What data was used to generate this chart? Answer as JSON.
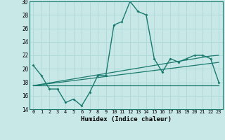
{
  "xlabel": "Humidex (Indice chaleur)",
  "x": [
    0,
    1,
    2,
    3,
    4,
    5,
    6,
    7,
    8,
    9,
    10,
    11,
    12,
    13,
    14,
    15,
    16,
    17,
    18,
    19,
    20,
    21,
    22,
    23
  ],
  "line1": [
    20.5,
    19.0,
    17.0,
    17.0,
    15.0,
    15.5,
    14.5,
    16.5,
    19.0,
    19.0,
    26.5,
    27.0,
    30.0,
    28.5,
    28.0,
    21.5,
    19.5,
    21.5,
    21.0,
    21.5,
    22.0,
    22.0,
    21.5,
    18.0
  ],
  "line2": [
    17.5,
    17.5,
    17.5,
    17.5,
    17.5,
    17.5,
    17.5,
    17.5,
    17.5,
    17.5,
    17.5,
    17.5,
    17.5,
    17.5,
    17.5,
    17.5,
    17.5,
    17.5,
    17.5,
    17.5,
    17.5,
    17.5,
    17.5,
    17.5
  ],
  "line3": [
    17.5,
    17.65,
    17.8,
    17.95,
    18.1,
    18.25,
    18.4,
    18.55,
    18.7,
    18.85,
    19.0,
    19.15,
    19.3,
    19.45,
    19.6,
    19.75,
    19.9,
    20.05,
    20.2,
    20.35,
    20.5,
    20.65,
    20.8,
    20.95
  ],
  "line4": [
    17.5,
    17.7,
    17.9,
    18.1,
    18.3,
    18.5,
    18.7,
    18.9,
    19.1,
    19.3,
    19.5,
    19.7,
    19.9,
    20.1,
    20.3,
    20.5,
    20.7,
    20.9,
    21.1,
    21.3,
    21.5,
    21.7,
    21.9,
    22.0
  ],
  "ylim": [
    14,
    30
  ],
  "xlim": [
    -0.5,
    23.5
  ],
  "yticks": [
    14,
    16,
    18,
    20,
    22,
    24,
    26,
    28,
    30
  ],
  "line_color": "#1a7a6e",
  "bg_color": "#c8e8e8",
  "grid_color": "#b0d8d8"
}
